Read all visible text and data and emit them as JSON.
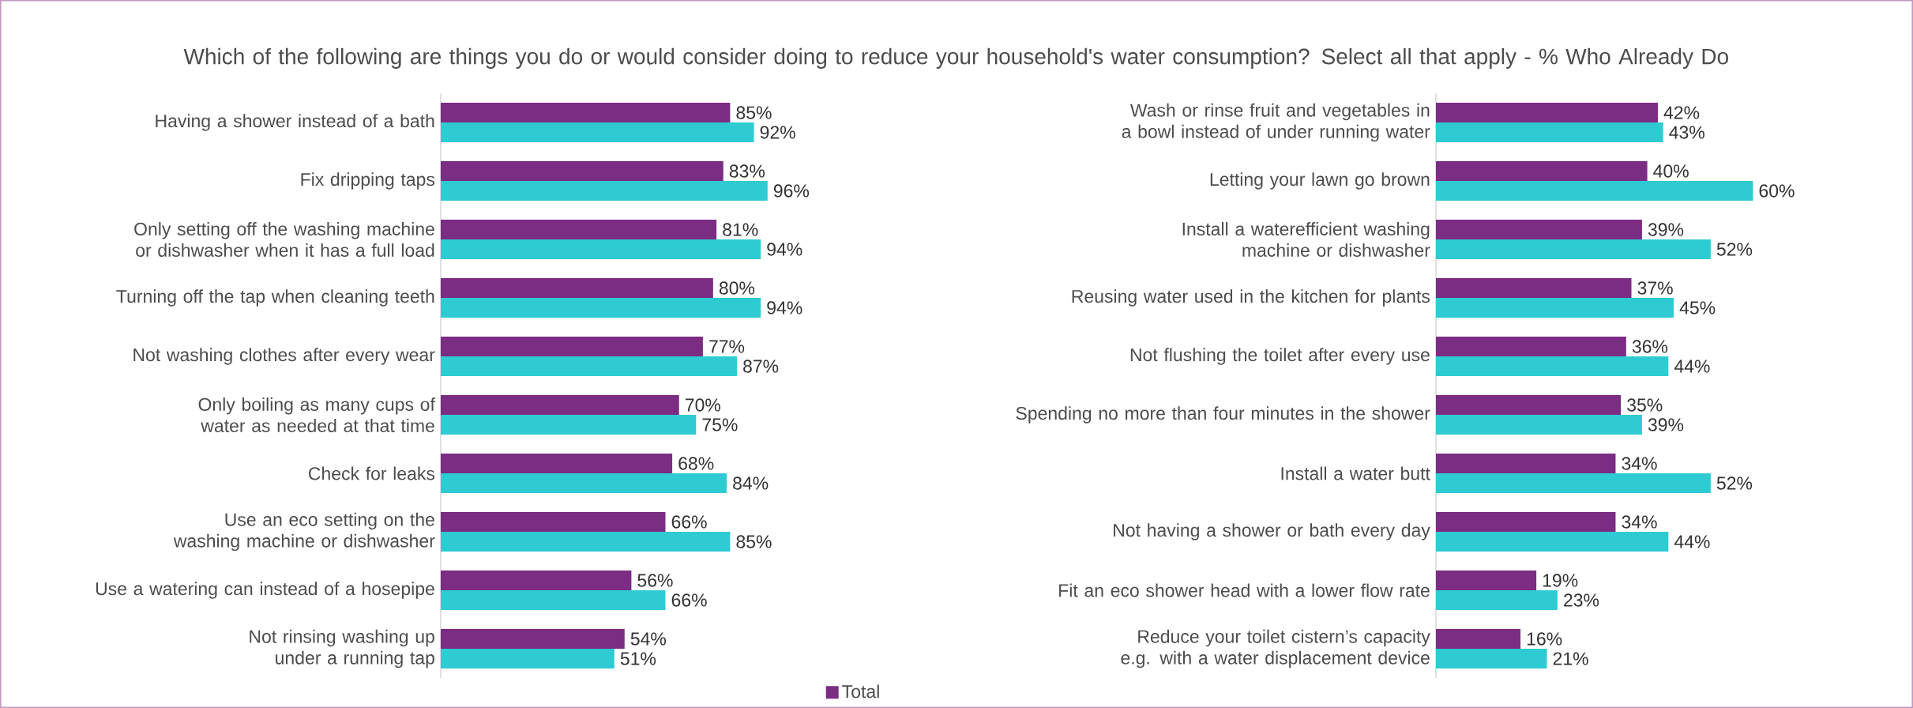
{
  "chart_data": [
    {
      "type": "bar",
      "orientation": "horizontal",
      "title": "Which of the following are things you do or would consider doing to reduce your household's water consumption? Select all that apply - % Who Already Do",
      "legend": "bottom",
      "categories": [
        "Having a shower instead of a bath",
        "Fix dripping taps",
        "Only setting off the washing machine or dishwasher when it has a full load",
        "Turning off the tap when cleaning teeth",
        "Not washing clothes after every wear",
        "Only boiling as many cups of water as needed at that time",
        "Check for leaks",
        "Use an eco setting on the washing machine or dishwasher",
        "Use a watering can instead of a hosepipe",
        "Not rinsing washing up under a running tap"
      ],
      "series": [
        {
          "name": "Total",
          "color": "#7b2c83",
          "values": [
            85,
            83,
            81,
            80,
            77,
            70,
            68,
            66,
            56,
            54
          ],
          "value_labels": [
            "85%",
            "83%",
            "81%",
            "80%",
            "77%",
            "70%",
            "68%",
            "66%",
            "56%",
            "54%"
          ]
        },
        {
          "color": "#2ecbd3",
          "values": [
            92,
            96,
            94,
            94,
            87,
            75,
            84,
            85,
            66,
            51
          ],
          "value_labels": [
            "92%",
            "96%",
            "94%",
            "94%",
            "87%",
            "75%",
            "84%",
            "85%",
            "66%",
            "51%"
          ]
        }
      ]
    },
    {
      "type": "bar",
      "orientation": "horizontal",
      "categories": [
        "Wash or rinse fruit and vegetables in a bowl instead of under running water",
        "Letting your lawn go brown",
        "Install a waterefficient washing machine or dishwasher",
        "Reusing water used in the kitchen for plants",
        "Not flushing the toilet after every use",
        "Spending no more than four minutes in the shower",
        "Install a water butt",
        "Not having a shower or bath every day",
        "Fit an eco shower head with a lower flow rate",
        "Reduce your toilet cistern’s capacity e.g. with a water displacement device"
      ],
      "series": [
        {
          "color": "#7b2c83",
          "values": [
            42,
            40,
            39,
            37,
            36,
            35,
            34,
            34,
            19,
            16
          ],
          "value_labels": [
            "42%",
            "40%",
            "39%",
            "37%",
            "36%",
            "35%",
            "34%",
            "34%",
            "19%",
            "16%"
          ]
        },
        {
          "color": "#2ecbd3",
          "values": [
            43,
            60,
            52,
            45,
            44,
            39,
            52,
            44,
            23,
            21
          ],
          "value_labels": [
            "43%",
            "60%",
            "52%",
            "45%",
            "44%",
            "39%",
            "52%",
            "44%",
            "23%",
            "21%"
          ]
        }
      ]
    }
  ]
}
